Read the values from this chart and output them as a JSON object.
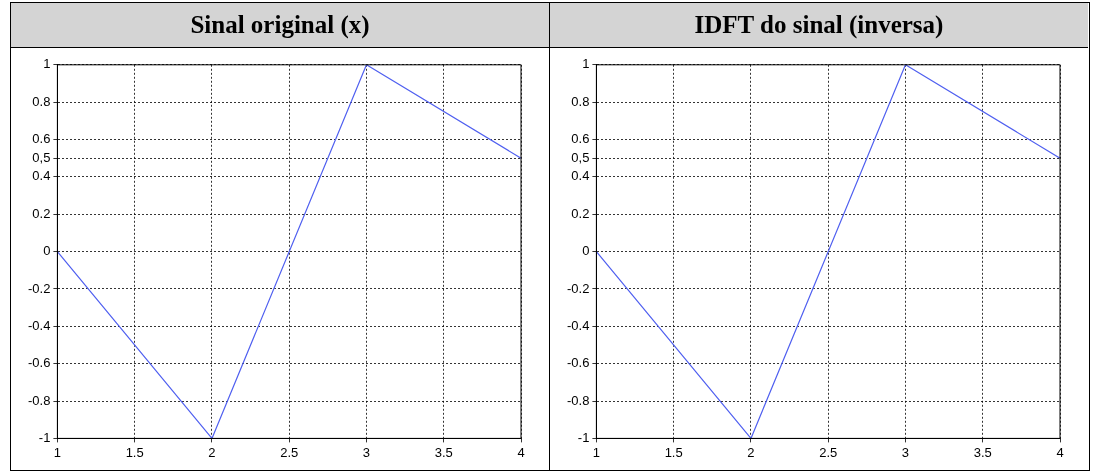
{
  "chart_data": [
    {
      "type": "line",
      "title": "Sinal original (x)",
      "x": [
        1,
        2,
        3,
        4
      ],
      "series": [
        {
          "color": "#5060f0",
          "values": [
            0,
            -1,
            1,
            0.5
          ]
        }
      ],
      "xlim": [
        1,
        4
      ],
      "xticks": [
        1,
        1.5,
        2,
        2.5,
        3,
        3.5,
        4
      ],
      "ylim": [
        -1,
        1
      ],
      "yticks": [
        -1,
        -0.8,
        -0.6,
        -0.4,
        -0.2,
        0,
        0.2,
        0.4,
        {
          "value": 0.5,
          "label": "0,5"
        },
        0.6,
        0.8,
        1
      ],
      "grid": true,
      "legend": false,
      "marker": "none",
      "line_style": "solid"
    },
    {
      "type": "line",
      "title": "IDFT do sinal (inversa)",
      "x": [
        1,
        2,
        3,
        4
      ],
      "series": [
        {
          "color": "#5060f0",
          "values": [
            0,
            -1,
            1,
            0.5
          ]
        }
      ],
      "xlim": [
        1,
        4
      ],
      "xticks": [
        1,
        1.5,
        2,
        2.5,
        3,
        3.5,
        4
      ],
      "ylim": [
        -1,
        1
      ],
      "yticks": [
        -1,
        -0.8,
        -0.6,
        -0.4,
        -0.2,
        0,
        0.2,
        0.4,
        {
          "value": 0.5,
          "label": "0,5"
        },
        0.6,
        0.8,
        1
      ],
      "grid": true,
      "legend": false,
      "marker": "none",
      "line_style": "solid"
    }
  ]
}
